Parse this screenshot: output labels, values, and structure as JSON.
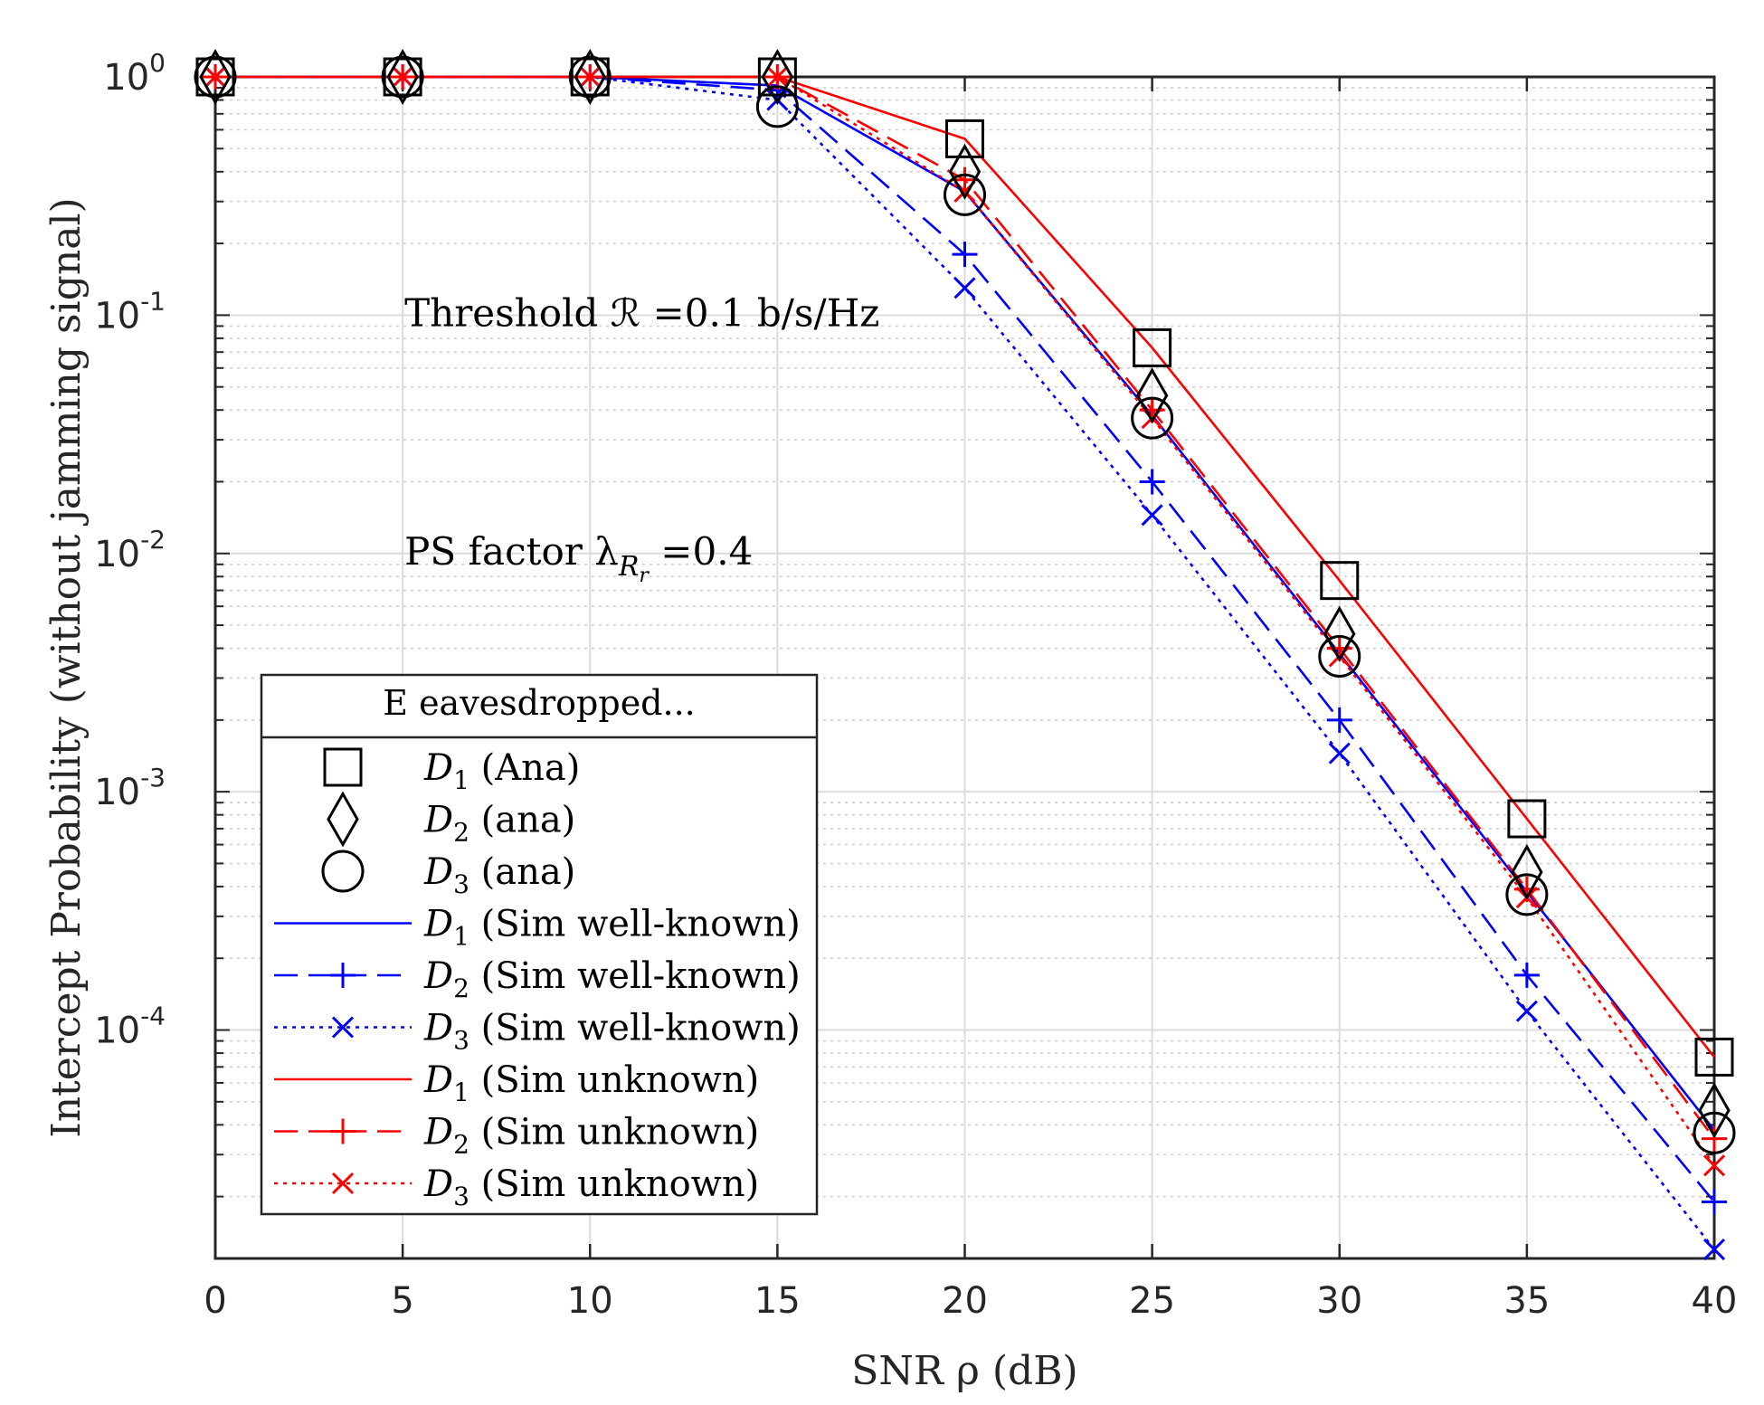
{
  "chart_data": {
    "type": "line",
    "title": "",
    "xlabel": "SNR ρ (dB)",
    "ylabel": "Intercept Probability (without jamming signal)",
    "xlim": [
      0,
      40
    ],
    "ylim": [
      1.1e-05,
      1
    ],
    "yscale": "log",
    "grid": true,
    "x_ticks": [
      0,
      5,
      10,
      15,
      20,
      25,
      30,
      35,
      40
    ],
    "y_ticks": [
      {
        "value": 1,
        "base": "10",
        "exp": "0"
      },
      {
        "value": 0.1,
        "base": "10",
        "exp": "-1"
      },
      {
        "value": 0.01,
        "base": "10",
        "exp": "-2"
      },
      {
        "value": 0.001,
        "base": "10",
        "exp": "-3"
      },
      {
        "value": 0.0001,
        "base": "10",
        "exp": "-4"
      }
    ],
    "x": [
      0,
      5,
      10,
      15,
      20,
      25,
      30,
      35,
      40
    ],
    "annotations": [
      {
        "id": "threshold",
        "text": "Threshold ℛ =0.1 b/s/Hz",
        "x": 5,
        "y": 0.1
      },
      {
        "id": "ps",
        "text_main": "PS factor λ",
        "sub": "R",
        "subsub": "r",
        "text_after": " =0.4",
        "x": 5,
        "y": 0.01
      }
    ],
    "legend": {
      "title": "E eavesdropped...",
      "position": "lower-left"
    },
    "series": [
      {
        "name": "D1 (Ana)",
        "label_main": "D",
        "label_sub": "1",
        "label_rest": " (Ana)",
        "color": "#000000",
        "line": "none",
        "marker": "square",
        "values": [
          1,
          1,
          1,
          1,
          0.55,
          0.073,
          0.0077,
          0.00077,
          7.7e-05
        ]
      },
      {
        "name": "D2 (ana)",
        "label_main": "D",
        "label_sub": "2",
        "label_rest": " (ana)",
        "color": "#000000",
        "line": "none",
        "marker": "diamond",
        "values": [
          1,
          1,
          1,
          1,
          0.4,
          0.046,
          0.0046,
          0.00046,
          4.6e-05
        ]
      },
      {
        "name": "D3 (ana)",
        "label_main": "D",
        "label_sub": "3",
        "label_rest": " (ana)",
        "color": "#000000",
        "line": "none",
        "marker": "circle",
        "values": [
          1,
          1,
          1,
          0.75,
          0.32,
          0.037,
          0.0037,
          0.00037,
          3.7e-05
        ]
      },
      {
        "name": "D1 (Sim well-known)",
        "label_main": "D",
        "label_sub": "1",
        "label_rest": " (Sim well-known)",
        "color": "#0000ff",
        "line": "solid",
        "marker": "none",
        "values": [
          1,
          1,
          1,
          0.92,
          0.33,
          0.038,
          0.0038,
          0.00038,
          3.8e-05
        ]
      },
      {
        "name": "D2 (Sim well-known)",
        "label_main": "D",
        "label_sub": "2",
        "label_rest": " (Sim well-known)",
        "color": "#0000ff",
        "line": "dashed",
        "marker": "plus",
        "values": [
          1,
          1,
          1,
          0.88,
          0.18,
          0.02,
          0.002,
          0.00017,
          1.9e-05
        ]
      },
      {
        "name": "D3 (Sim well-known)",
        "label_main": "D",
        "label_sub": "3",
        "label_rest": " (Sim well-known)",
        "color": "#0000ff",
        "line": "dotted",
        "marker": "x",
        "values": [
          1,
          1,
          1,
          0.8,
          0.13,
          0.0145,
          0.00145,
          0.00012,
          1.2e-05
        ]
      },
      {
        "name": "D1 (Sim unknown)",
        "label_main": "D",
        "label_sub": "1",
        "label_rest": " (Sim unknown)",
        "color": "#ff0000",
        "line": "solid",
        "marker": "none",
        "values": [
          1,
          1,
          1,
          1,
          0.55,
          0.073,
          0.0077,
          0.00077,
          7.7e-05
        ]
      },
      {
        "name": "D2 (Sim unknown)",
        "label_main": "D",
        "label_sub": "2",
        "label_rest": " (Sim unknown)",
        "color": "#ff0000",
        "line": "dashed",
        "marker": "plus",
        "values": [
          1,
          1,
          1,
          1,
          0.37,
          0.04,
          0.004,
          0.00039,
          3.5e-05
        ]
      },
      {
        "name": "D3 (Sim unknown)",
        "label_main": "D",
        "label_sub": "3",
        "label_rest": " (Sim unknown)",
        "color": "#ff0000",
        "line": "dotted",
        "marker": "x",
        "values": [
          1,
          1,
          1,
          1,
          0.33,
          0.037,
          0.0037,
          0.00036,
          2.7e-05
        ]
      }
    ]
  }
}
